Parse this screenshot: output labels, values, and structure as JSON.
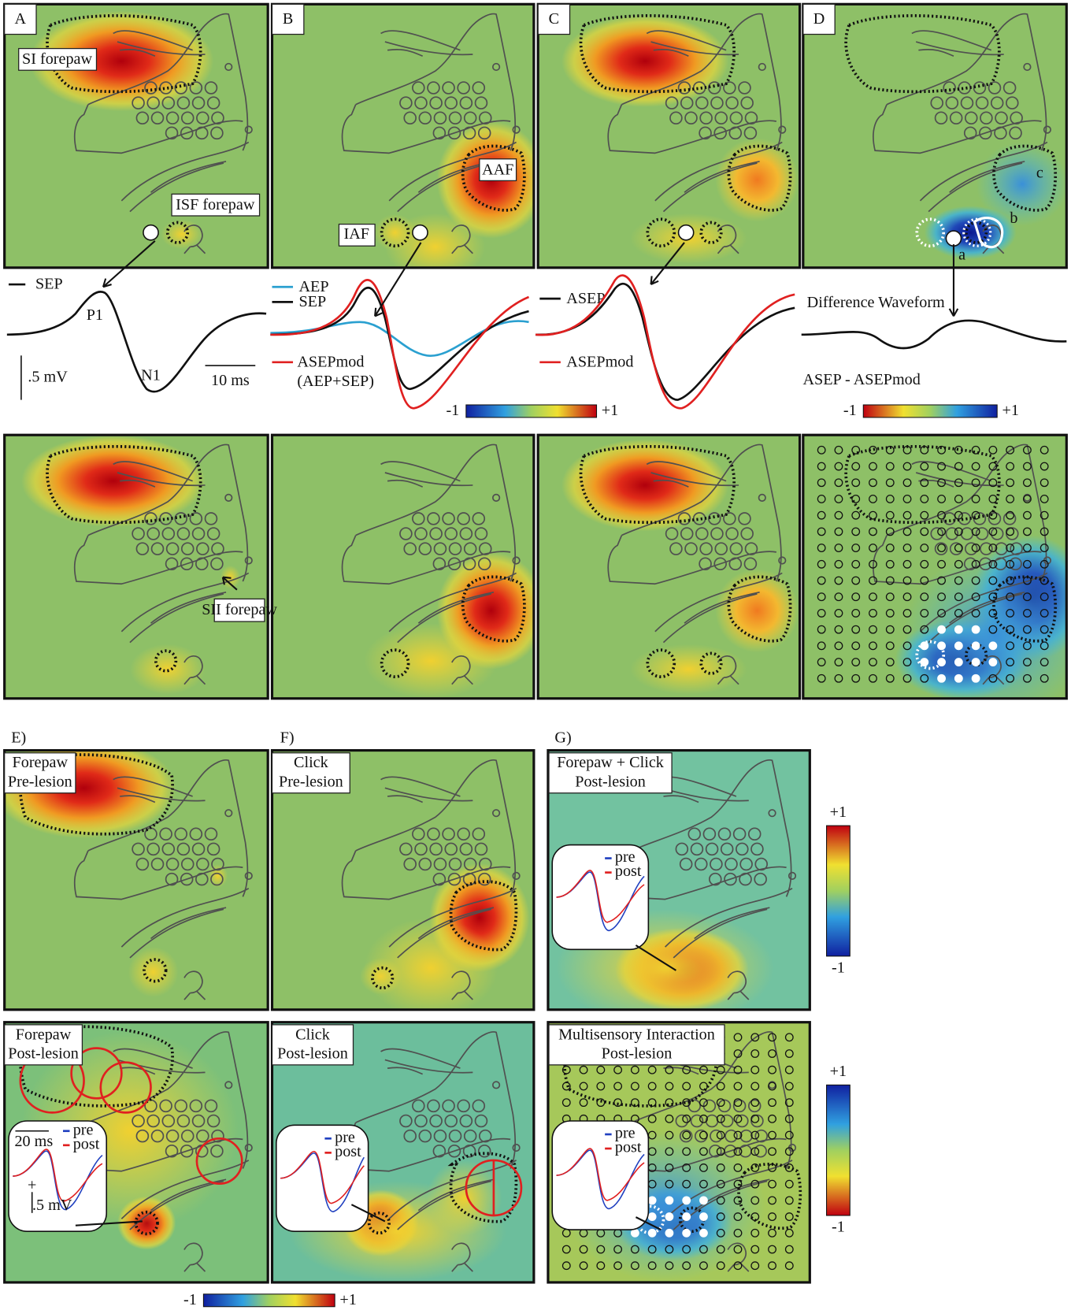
{
  "panel_letters": [
    "A",
    "B",
    "C",
    "D",
    "E)",
    "F)",
    "G)"
  ],
  "map_labels": {
    "si_forepaw": "SI forepaw",
    "isf_forepaw": "ISF forepaw",
    "sii_forepaw": "SII forepaw",
    "aaf": "AAF",
    "iaf": "IAF",
    "a": "a",
    "b": "b",
    "c": "c"
  },
  "waveforms": {
    "A": {
      "legend": [
        "SEP"
      ],
      "peaks": [
        "P1",
        "N1"
      ],
      "scale_v": ".5 mV",
      "scale_t": "10 ms"
    },
    "B": {
      "legend": [
        "AEP",
        "SEP",
        "ASEPmod",
        "(AEP+SEP)"
      ]
    },
    "C": {
      "legend": [
        "ASEP",
        "ASEPmod"
      ]
    },
    "D": {
      "title": "Difference Waveform",
      "subtitle": "ASEP - ASEPmod"
    }
  },
  "boxes": {
    "E_pre": [
      "Forepaw",
      "Pre-lesion"
    ],
    "E_post": [
      "Forepaw",
      "Post-lesion"
    ],
    "F_pre": [
      "Click",
      "Pre-lesion"
    ],
    "F_post": [
      "Click",
      "Post-lesion"
    ],
    "G_pre": [
      "Forepaw + Click",
      "Post-lesion"
    ],
    "G_post": [
      "Multisensory Interaction",
      "Post-lesion"
    ]
  },
  "insets": {
    "E": {
      "time": "20 ms",
      "legend": [
        "pre",
        "post"
      ],
      "plus": "+",
      "volt": ".5 mV"
    },
    "F": {
      "legend": [
        "pre",
        "post"
      ]
    },
    "G_pre": {
      "legend": [
        "pre",
        "post"
      ]
    },
    "G_post": {
      "legend": [
        "pre",
        "post"
      ]
    }
  },
  "colorbars": [
    {
      "low": "-1",
      "high": "+1"
    },
    {
      "low": "-1",
      "high": "+1"
    },
    {
      "low": "-1",
      "high": "+1"
    },
    {
      "low": "-1",
      "high": "+1"
    },
    {
      "low": "-1",
      "high": "+1"
    }
  ]
}
